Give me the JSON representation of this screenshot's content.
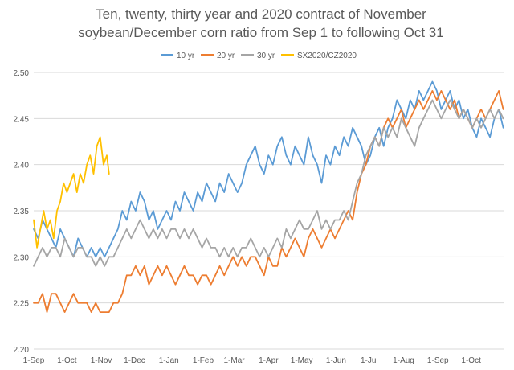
{
  "chart_data": {
    "type": "line",
    "title": [
      "Ten, twenty, thirty year and 2020 contract of November",
      "soybean/December corn ratio from Sep 1 to following Oct 31"
    ],
    "xlabel": "",
    "ylabel": "",
    "xlim": [
      0,
      425
    ],
    "ylim": [
      2.2,
      2.5
    ],
    "y_ticks": [
      2.2,
      2.25,
      2.3,
      2.35,
      2.4,
      2.45,
      2.5
    ],
    "y_tick_labels": [
      "2.20",
      "2.25",
      "2.30",
      "2.35",
      "2.40",
      "2.45",
      "2.50"
    ],
    "x_ticks": [
      0,
      30,
      61,
      91,
      122,
      153,
      181,
      212,
      242,
      273,
      303,
      334,
      365,
      395
    ],
    "x_tick_labels": [
      "1-Sep",
      "1-Oct",
      "1-Nov",
      "1-Dec",
      "1-Jan",
      "1-Feb",
      "1-Mar",
      "1-Apr",
      "1-May",
      "1-Jun",
      "1-Jul",
      "1-Aug",
      "1-Sep",
      "1-Oct"
    ],
    "grid": "horizontal",
    "legend": "top",
    "series": [
      {
        "name": "10 yr",
        "color": "#5B9BD5",
        "x": [
          0,
          4,
          8,
          12,
          16,
          20,
          24,
          28,
          32,
          36,
          40,
          44,
          48,
          52,
          56,
          60,
          64,
          68,
          72,
          76,
          80,
          84,
          88,
          92,
          96,
          100,
          104,
          108,
          112,
          116,
          120,
          124,
          128,
          132,
          136,
          140,
          144,
          148,
          152,
          156,
          160,
          164,
          168,
          172,
          176,
          180,
          184,
          188,
          192,
          196,
          200,
          204,
          208,
          212,
          216,
          220,
          224,
          228,
          232,
          236,
          240,
          244,
          248,
          252,
          256,
          260,
          264,
          268,
          272,
          276,
          280,
          284,
          288,
          292,
          296,
          300,
          304,
          308,
          312,
          316,
          320,
          324,
          328,
          332,
          336,
          340,
          344,
          348,
          352,
          356,
          360,
          364,
          368,
          372,
          376,
          380,
          384,
          388,
          392,
          396,
          400,
          404,
          408,
          412,
          416,
          420,
          424
        ],
        "y": [
          2.33,
          2.32,
          2.34,
          2.33,
          2.32,
          2.31,
          2.33,
          2.32,
          2.31,
          2.3,
          2.32,
          2.31,
          2.3,
          2.31,
          2.3,
          2.31,
          2.3,
          2.31,
          2.32,
          2.33,
          2.35,
          2.34,
          2.36,
          2.35,
          2.37,
          2.36,
          2.34,
          2.35,
          2.33,
          2.34,
          2.35,
          2.34,
          2.36,
          2.35,
          2.37,
          2.36,
          2.35,
          2.37,
          2.36,
          2.38,
          2.37,
          2.36,
          2.38,
          2.37,
          2.39,
          2.38,
          2.37,
          2.38,
          2.4,
          2.41,
          2.42,
          2.4,
          2.39,
          2.41,
          2.4,
          2.42,
          2.43,
          2.41,
          2.4,
          2.42,
          2.41,
          2.4,
          2.43,
          2.41,
          2.4,
          2.38,
          2.41,
          2.4,
          2.42,
          2.41,
          2.43,
          2.42,
          2.44,
          2.43,
          2.42,
          2.4,
          2.41,
          2.43,
          2.44,
          2.42,
          2.44,
          2.45,
          2.47,
          2.46,
          2.45,
          2.47,
          2.46,
          2.48,
          2.47,
          2.48,
          2.49,
          2.48,
          2.46,
          2.47,
          2.48,
          2.46,
          2.47,
          2.45,
          2.46,
          2.44,
          2.43,
          2.45,
          2.44,
          2.43,
          2.45,
          2.46,
          2.44
        ]
      },
      {
        "name": "20 yr",
        "color": "#ED7D31",
        "x": [
          0,
          4,
          8,
          12,
          16,
          20,
          24,
          28,
          32,
          36,
          40,
          44,
          48,
          52,
          56,
          60,
          64,
          68,
          72,
          76,
          80,
          84,
          88,
          92,
          96,
          100,
          104,
          108,
          112,
          116,
          120,
          124,
          128,
          132,
          136,
          140,
          144,
          148,
          152,
          156,
          160,
          164,
          168,
          172,
          176,
          180,
          184,
          188,
          192,
          196,
          200,
          204,
          208,
          212,
          216,
          220,
          224,
          228,
          232,
          236,
          240,
          244,
          248,
          252,
          256,
          260,
          264,
          268,
          272,
          276,
          280,
          284,
          288,
          292,
          296,
          300,
          304,
          308,
          312,
          316,
          320,
          324,
          328,
          332,
          336,
          340,
          344,
          348,
          352,
          356,
          360,
          364,
          368,
          372,
          376,
          380,
          384,
          388,
          392,
          396,
          400,
          404,
          408,
          412,
          416,
          420,
          424
        ],
        "y": [
          2.25,
          2.25,
          2.26,
          2.24,
          2.26,
          2.26,
          2.25,
          2.24,
          2.25,
          2.26,
          2.25,
          2.25,
          2.25,
          2.24,
          2.25,
          2.24,
          2.24,
          2.24,
          2.25,
          2.25,
          2.26,
          2.28,
          2.28,
          2.29,
          2.28,
          2.29,
          2.27,
          2.28,
          2.29,
          2.28,
          2.29,
          2.28,
          2.27,
          2.28,
          2.29,
          2.28,
          2.28,
          2.27,
          2.28,
          2.28,
          2.27,
          2.28,
          2.29,
          2.28,
          2.29,
          2.3,
          2.29,
          2.3,
          2.29,
          2.3,
          2.3,
          2.29,
          2.28,
          2.3,
          2.29,
          2.29,
          2.31,
          2.3,
          2.31,
          2.32,
          2.31,
          2.3,
          2.32,
          2.33,
          2.32,
          2.31,
          2.32,
          2.33,
          2.32,
          2.33,
          2.34,
          2.35,
          2.34,
          2.37,
          2.39,
          2.4,
          2.42,
          2.43,
          2.42,
          2.44,
          2.45,
          2.44,
          2.45,
          2.46,
          2.44,
          2.45,
          2.46,
          2.47,
          2.46,
          2.47,
          2.48,
          2.47,
          2.48,
          2.47,
          2.46,
          2.47,
          2.45,
          2.46,
          2.45,
          2.44,
          2.45,
          2.46,
          2.45,
          2.46,
          2.47,
          2.48,
          2.46
        ]
      },
      {
        "name": "30 yr",
        "color": "#A5A5A5",
        "x": [
          0,
          4,
          8,
          12,
          16,
          20,
          24,
          28,
          32,
          36,
          40,
          44,
          48,
          52,
          56,
          60,
          64,
          68,
          72,
          76,
          80,
          84,
          88,
          92,
          96,
          100,
          104,
          108,
          112,
          116,
          120,
          124,
          128,
          132,
          136,
          140,
          144,
          148,
          152,
          156,
          160,
          164,
          168,
          172,
          176,
          180,
          184,
          188,
          192,
          196,
          200,
          204,
          208,
          212,
          216,
          220,
          224,
          228,
          232,
          236,
          240,
          244,
          248,
          252,
          256,
          260,
          264,
          268,
          272,
          276,
          280,
          284,
          288,
          292,
          296,
          300,
          304,
          308,
          312,
          316,
          320,
          324,
          328,
          332,
          336,
          340,
          344,
          348,
          352,
          356,
          360,
          364,
          368,
          372,
          376,
          380,
          384,
          388,
          392,
          396,
          400,
          404,
          408,
          412,
          416,
          420,
          424
        ],
        "y": [
          2.29,
          2.3,
          2.31,
          2.3,
          2.31,
          2.31,
          2.3,
          2.32,
          2.31,
          2.3,
          2.31,
          2.31,
          2.3,
          2.3,
          2.29,
          2.3,
          2.29,
          2.3,
          2.3,
          2.31,
          2.32,
          2.33,
          2.32,
          2.33,
          2.34,
          2.33,
          2.32,
          2.33,
          2.32,
          2.33,
          2.32,
          2.33,
          2.33,
          2.32,
          2.33,
          2.32,
          2.33,
          2.32,
          2.31,
          2.32,
          2.31,
          2.31,
          2.3,
          2.31,
          2.3,
          2.31,
          2.3,
          2.31,
          2.31,
          2.32,
          2.31,
          2.3,
          2.31,
          2.3,
          2.31,
          2.32,
          2.31,
          2.33,
          2.32,
          2.33,
          2.34,
          2.33,
          2.33,
          2.34,
          2.35,
          2.33,
          2.34,
          2.33,
          2.34,
          2.34,
          2.35,
          2.34,
          2.36,
          2.38,
          2.39,
          2.41,
          2.42,
          2.43,
          2.42,
          2.44,
          2.43,
          2.44,
          2.43,
          2.45,
          2.44,
          2.43,
          2.42,
          2.44,
          2.45,
          2.46,
          2.47,
          2.46,
          2.45,
          2.46,
          2.47,
          2.46,
          2.45,
          2.46,
          2.45,
          2.44,
          2.45,
          2.44,
          2.45,
          2.46,
          2.45,
          2.46,
          2.45
        ]
      },
      {
        "name": "SX2020/CZ2020",
        "color": "#FFC000",
        "x": [
          0,
          3,
          6,
          9,
          12,
          15,
          18,
          21,
          24,
          27,
          30,
          33,
          36,
          39,
          42,
          45,
          48,
          51,
          54,
          57,
          60,
          63,
          66,
          68
        ],
        "y": [
          2.34,
          2.31,
          2.33,
          2.35,
          2.33,
          2.34,
          2.32,
          2.35,
          2.36,
          2.38,
          2.37,
          2.38,
          2.39,
          2.37,
          2.39,
          2.38,
          2.4,
          2.41,
          2.39,
          2.42,
          2.43,
          2.4,
          2.41,
          2.39
        ]
      }
    ]
  }
}
